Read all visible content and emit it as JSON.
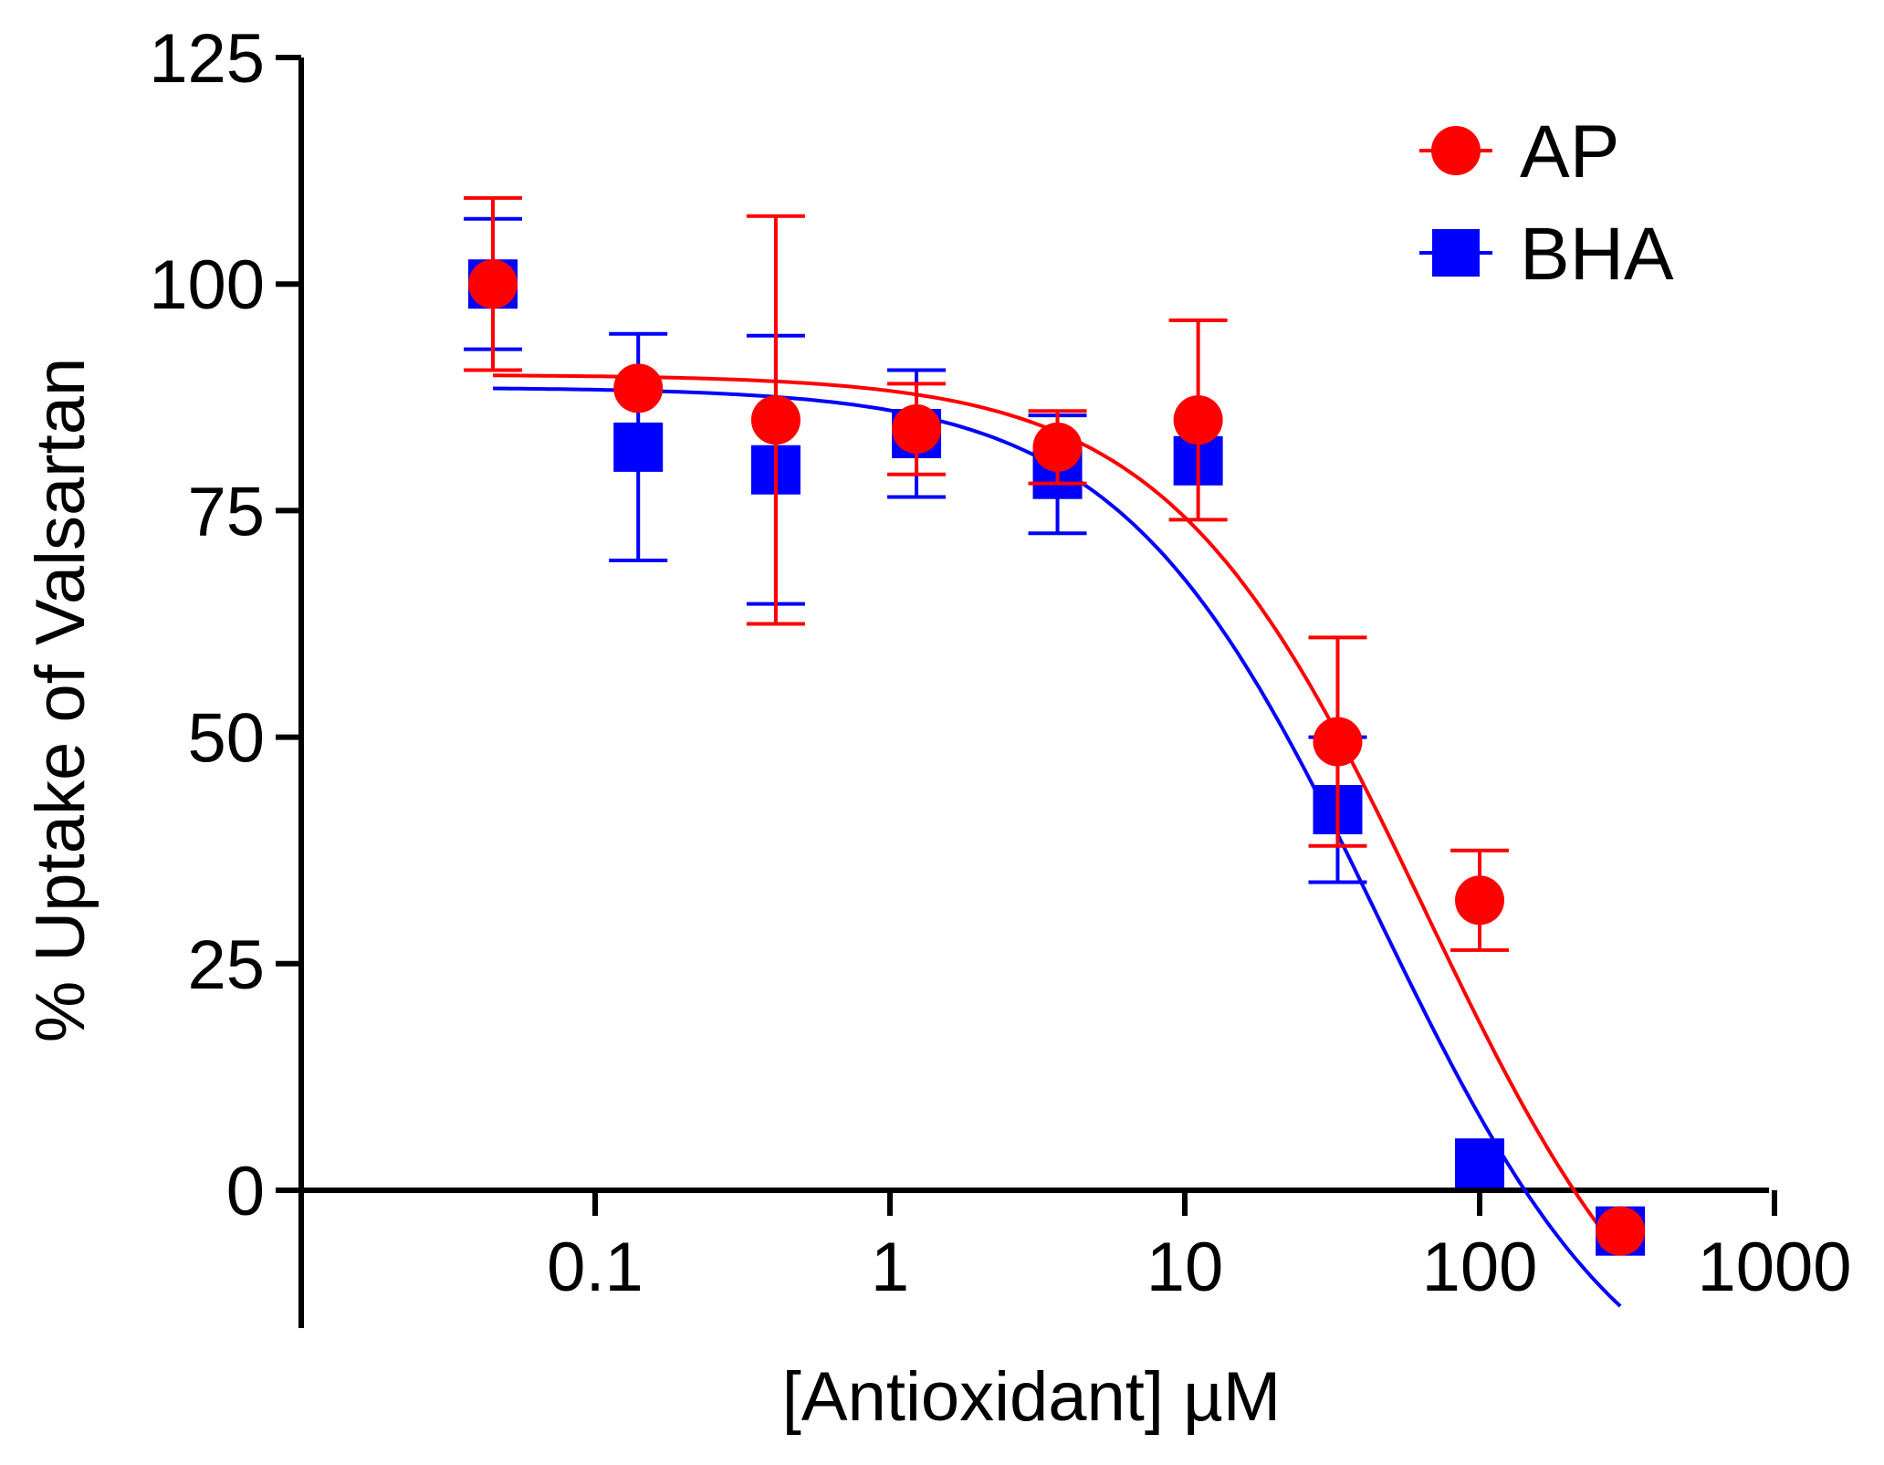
{
  "chart_data": {
    "type": "scatter",
    "title": "",
    "xlabel": "[Antioxidant] µM",
    "ylabel": "% Uptake of Valsartan",
    "xscale": "log",
    "xlim": [
      0.01,
      1000
    ],
    "ylim": [
      -13,
      125
    ],
    "xticks": [
      0.1,
      1,
      10,
      100,
      1000
    ],
    "xtick_labels": [
      "0.1",
      "1",
      "10",
      "100",
      "1000"
    ],
    "yticks": [
      0,
      25,
      50,
      75,
      100,
      125
    ],
    "ytick_labels": [
      "0",
      "25",
      "50",
      "75",
      "100",
      "125"
    ],
    "grid": false,
    "legend_position": "top-right",
    "series": [
      {
        "name": "AP",
        "color": "#ff0000",
        "marker": "circle",
        "points": [
          {
            "x": 0.045,
            "y": 100,
            "err_hi": 9.5,
            "err_lo": 9.5
          },
          {
            "x": 0.14,
            "y": 88.5,
            "err_hi": 0,
            "err_lo": 0
          },
          {
            "x": 0.41,
            "y": 85,
            "err_hi": 22.5,
            "err_lo": 22.5
          },
          {
            "x": 1.23,
            "y": 84,
            "err_hi": 5,
            "err_lo": 5
          },
          {
            "x": 3.7,
            "y": 82,
            "err_hi": 4,
            "err_lo": 4
          },
          {
            "x": 11.1,
            "y": 85,
            "err_hi": 11,
            "err_lo": 11
          },
          {
            "x": 33,
            "y": 49.5,
            "err_hi": 11.5,
            "err_lo": 11.5
          },
          {
            "x": 100,
            "y": 32,
            "err_hi": 5.5,
            "err_lo": 5.5
          },
          {
            "x": 300,
            "y": -4.5,
            "err_hi": 0,
            "err_lo": 0
          }
        ],
        "fit": {
          "top": 90,
          "bottom": -28,
          "ic50": 65,
          "hill": 1
        }
      },
      {
        "name": "BHA",
        "color": "#0000ff",
        "marker": "square",
        "points": [
          {
            "x": 0.045,
            "y": 100,
            "err_hi": 7.2,
            "err_lo": 7.2
          },
          {
            "x": 0.14,
            "y": 82,
            "err_hi": 12.5,
            "err_lo": 12.5
          },
          {
            "x": 0.41,
            "y": 79.5,
            "err_hi": 14.8,
            "err_lo": 14.8
          },
          {
            "x": 1.23,
            "y": 83.5,
            "err_hi": 7,
            "err_lo": 7
          },
          {
            "x": 3.7,
            "y": 79,
            "err_hi": 6.5,
            "err_lo": 6.5
          },
          {
            "x": 11.1,
            "y": 80.5,
            "err_hi": 0,
            "err_lo": 0
          },
          {
            "x": 33,
            "y": 42,
            "err_hi": 8,
            "err_lo": 8
          },
          {
            "x": 100,
            "y": 3,
            "err_hi": 0,
            "err_lo": 0
          },
          {
            "x": 300,
            "y": -4.5,
            "err_hi": 0,
            "err_lo": 0
          }
        ],
        "fit": {
          "top": 88.6,
          "bottom": -28,
          "ic50": 45,
          "hill": 1
        }
      }
    ]
  }
}
